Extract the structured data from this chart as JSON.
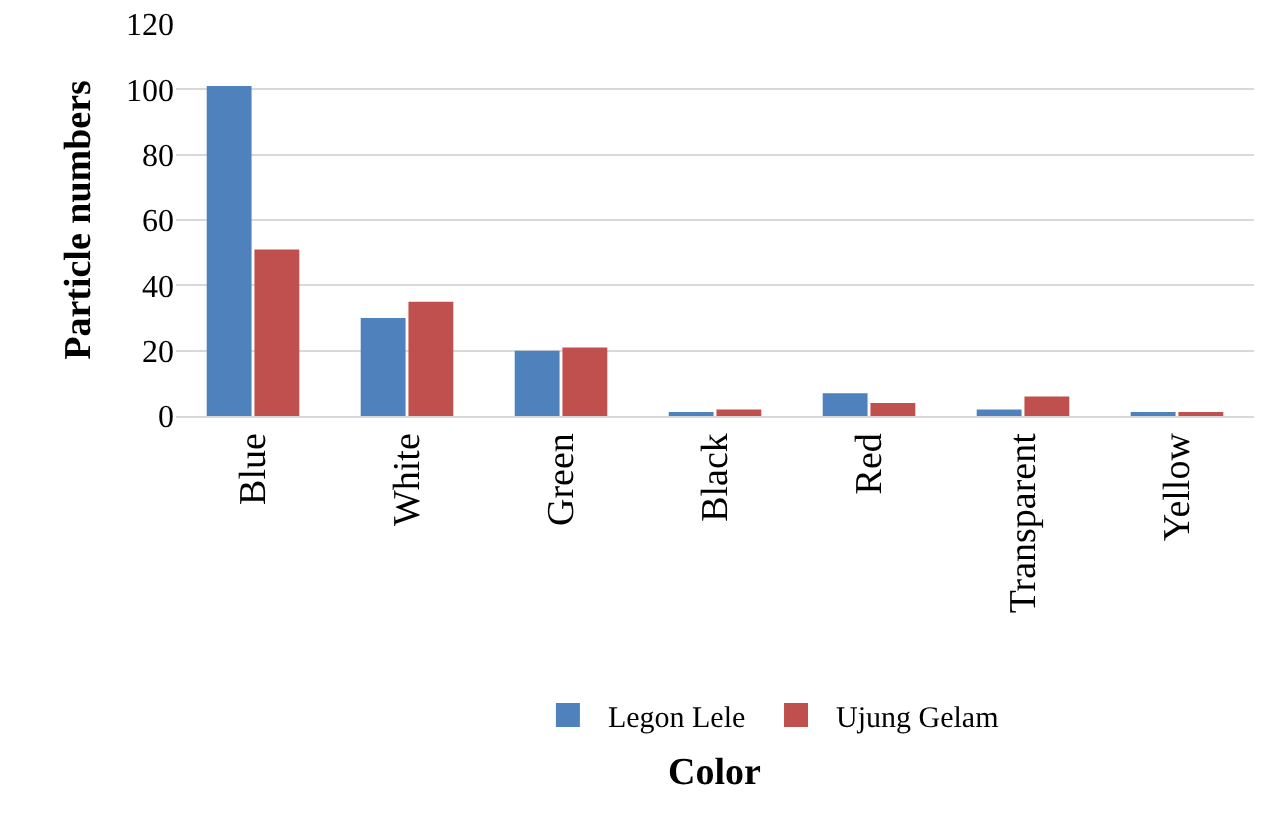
{
  "chart_data": {
    "type": "bar",
    "xlabel": "Color",
    "ylabel": "Particle numbers",
    "categories": [
      "Blue",
      "White",
      "Green",
      "Black",
      "Red",
      "Transparent",
      "Yellow"
    ],
    "series": [
      {
        "name": "Legon Lele",
        "color": "#4f81bd",
        "values": [
          101,
          30,
          20,
          1,
          7,
          2,
          1
        ]
      },
      {
        "name": "Ujung Gelam",
        "color": "#c0504d",
        "values": [
          51,
          35,
          21,
          2,
          4,
          6,
          1
        ]
      }
    ],
    "ylim": [
      0,
      120
    ],
    "yticks": [
      0,
      20,
      40,
      60,
      80,
      100,
      120
    ],
    "grid": "y",
    "legend": "bottom"
  }
}
